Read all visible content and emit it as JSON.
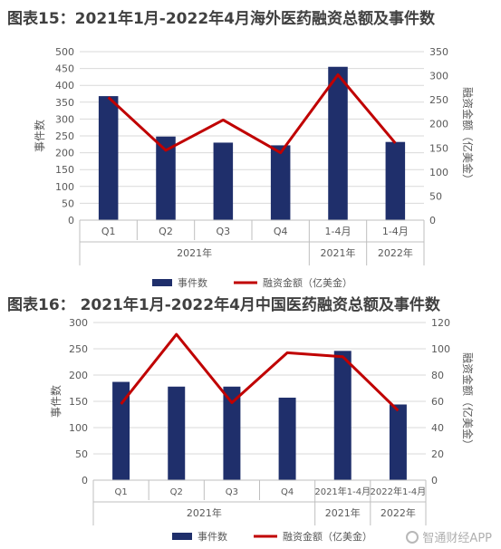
{
  "chart_data": [
    {
      "type": "bar",
      "title": "图表15：2021年1月-2022年4月海外医药融资总额及事件数",
      "categories": [
        "Q1",
        "Q2",
        "Q3",
        "Q4",
        "1-4月",
        "1-4月"
      ],
      "groups": [
        "2021年",
        "2021年",
        "2022年"
      ],
      "ylabel": "事件数",
      "y2label": "融资金额（亿美金）",
      "ylim": [
        0,
        500
      ],
      "yticks": [
        0,
        50,
        100,
        150,
        200,
        250,
        300,
        350,
        400,
        450,
        500
      ],
      "y2lim": [
        0,
        350
      ],
      "y2ticks": [
        0,
        50,
        100,
        150,
        200,
        250,
        300,
        350
      ],
      "series": [
        {
          "name": "事件数",
          "type": "bar",
          "axis": "left",
          "color": "#1f2f6b",
          "values": [
            368,
            248,
            230,
            222,
            455,
            232
          ]
        },
        {
          "name": "融资金额（亿美金）",
          "type": "line",
          "axis": "right",
          "color": "#c00000",
          "values": [
            255,
            145,
            208,
            140,
            302,
            160
          ]
        }
      ],
      "legend_position": "bottom"
    },
    {
      "type": "bar",
      "title": "图表16： 2021年1月-2022年4月中国医药融资总额及事件数",
      "categories": [
        "Q1",
        "Q2",
        "Q3",
        "Q4",
        "2021年1-4月",
        "2022年1-4月"
      ],
      "groups": [
        "2021年",
        "2021年",
        "2022年"
      ],
      "ylabel": "事件数",
      "y2label": "融资金额（亿美金）",
      "ylim": [
        0,
        300
      ],
      "yticks": [
        0,
        50,
        100,
        150,
        200,
        250,
        300
      ],
      "y2lim": [
        0,
        120
      ],
      "y2ticks": [
        0,
        20,
        40,
        60,
        80,
        100,
        120
      ],
      "series": [
        {
          "name": "事件数",
          "type": "bar",
          "axis": "left",
          "color": "#1f2f6b",
          "values": [
            187,
            178,
            178,
            157,
            246,
            144
          ]
        },
        {
          "name": "融资金额（亿美金）",
          "type": "line",
          "axis": "right",
          "color": "#c00000",
          "values": [
            58,
            111,
            59,
            97,
            94,
            53
          ]
        }
      ],
      "legend_position": "bottom"
    }
  ],
  "watermark": "智通财经APP"
}
